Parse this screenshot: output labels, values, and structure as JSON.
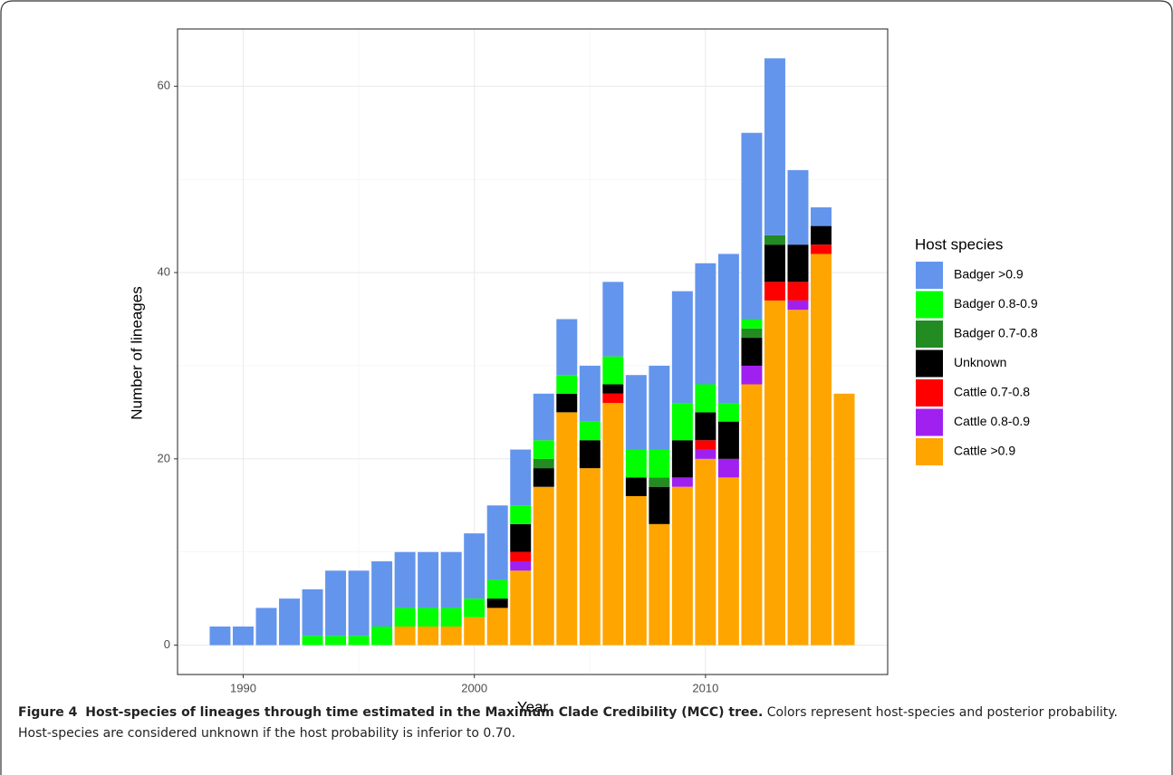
{
  "chart_data": {
    "type": "stacked_bar",
    "x_label": "Year",
    "y_label": "Number of lineages",
    "legend_title": "Host species",
    "x": [
      1989,
      1990,
      1991,
      1992,
      1993,
      1994,
      1995,
      1996,
      1997,
      1998,
      1999,
      2000,
      2001,
      2002,
      2003,
      2004,
      2005,
      2006,
      2007,
      2008,
      2009,
      2010,
      2011,
      2012,
      2013,
      2014,
      2015,
      2016
    ],
    "series": [
      {
        "name": "Badger >0.9",
        "color": "#6495ed",
        "values": [
          2,
          2,
          4,
          5,
          5,
          7,
          7,
          7,
          6,
          6,
          6,
          7,
          8,
          6,
          5,
          6,
          6,
          8,
          8,
          9,
          12,
          13,
          16,
          20,
          19,
          8,
          2,
          0
        ]
      },
      {
        "name": "Badger 0.8-0.9",
        "color": "#00ff00",
        "values": [
          0,
          0,
          0,
          0,
          1,
          1,
          1,
          2,
          2,
          2,
          2,
          2,
          2,
          2,
          2,
          2,
          2,
          3,
          3,
          3,
          4,
          3,
          2,
          1,
          0,
          0,
          0,
          0
        ]
      },
      {
        "name": "Badger 0.7-0.8",
        "color": "#228b22",
        "values": [
          0,
          0,
          0,
          0,
          0,
          0,
          0,
          0,
          0,
          0,
          0,
          0,
          0,
          0,
          1,
          0,
          0,
          0,
          0,
          1,
          0,
          0,
          0,
          1,
          1,
          0,
          0,
          0
        ]
      },
      {
        "name": "Unknown",
        "color": "#000000",
        "values": [
          0,
          0,
          0,
          0,
          0,
          0,
          0,
          0,
          0,
          0,
          0,
          0,
          1,
          3,
          2,
          2,
          3,
          1,
          2,
          4,
          4,
          3,
          4,
          3,
          4,
          4,
          2,
          0
        ]
      },
      {
        "name": "Cattle 0.7-0.8",
        "color": "#ff0000",
        "values": [
          0,
          0,
          0,
          0,
          0,
          0,
          0,
          0,
          0,
          0,
          0,
          0,
          0,
          1,
          0,
          0,
          0,
          1,
          0,
          0,
          0,
          1,
          0,
          0,
          2,
          2,
          1,
          0
        ]
      },
      {
        "name": "Cattle 0.8-0.9",
        "color": "#a020f0",
        "values": [
          0,
          0,
          0,
          0,
          0,
          0,
          0,
          0,
          0,
          0,
          0,
          0,
          0,
          1,
          0,
          0,
          0,
          0,
          0,
          0,
          1,
          1,
          2,
          2,
          0,
          1,
          0,
          0
        ]
      },
      {
        "name": "Cattle >0.9",
        "color": "#ffa500",
        "values": [
          0,
          0,
          0,
          0,
          0,
          0,
          0,
          0,
          2,
          2,
          2,
          3,
          4,
          8,
          17,
          25,
          19,
          26,
          16,
          13,
          17,
          20,
          18,
          28,
          37,
          36,
          42,
          27
        ]
      }
    ],
    "xlim": [
      1987.16,
      2017.88
    ],
    "xticks": [
      1990,
      2000,
      2010
    ],
    "ylim": [
      -3.15,
      66.15
    ],
    "yticks": [
      0,
      20,
      40,
      60
    ],
    "grid": true
  },
  "caption": {
    "label": "Figure 4",
    "title": "Host-species of lineages through time estimated in the Maximum Clade Credibility (MCC) tree.",
    "text": "Colors represent host-species and posterior probability. Host-species are considered unknown if the host probability is inferior to 0.70."
  }
}
